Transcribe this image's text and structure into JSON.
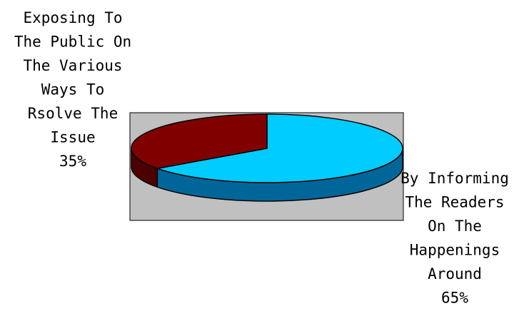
{
  "chart_data": {
    "type": "pie",
    "title": "",
    "style": "3d",
    "slices": [
      {
        "label_lines": [
          "By Informing",
          "The Readers",
          "On The",
          "Happenings",
          "Around"
        ],
        "percent_label": "65%",
        "value": 65,
        "color": "#00ccff",
        "side_color": "#006699"
      },
      {
        "label_lines": [
          "Exposing To",
          "The Public On",
          "The Various",
          "Ways To",
          "Rsolve The",
          "Issue"
        ],
        "percent_label": "35%",
        "value": 35,
        "color": "#800000",
        "side_color": "#4d0000"
      }
    ],
    "plot_area_color": "#c0c0c0"
  }
}
